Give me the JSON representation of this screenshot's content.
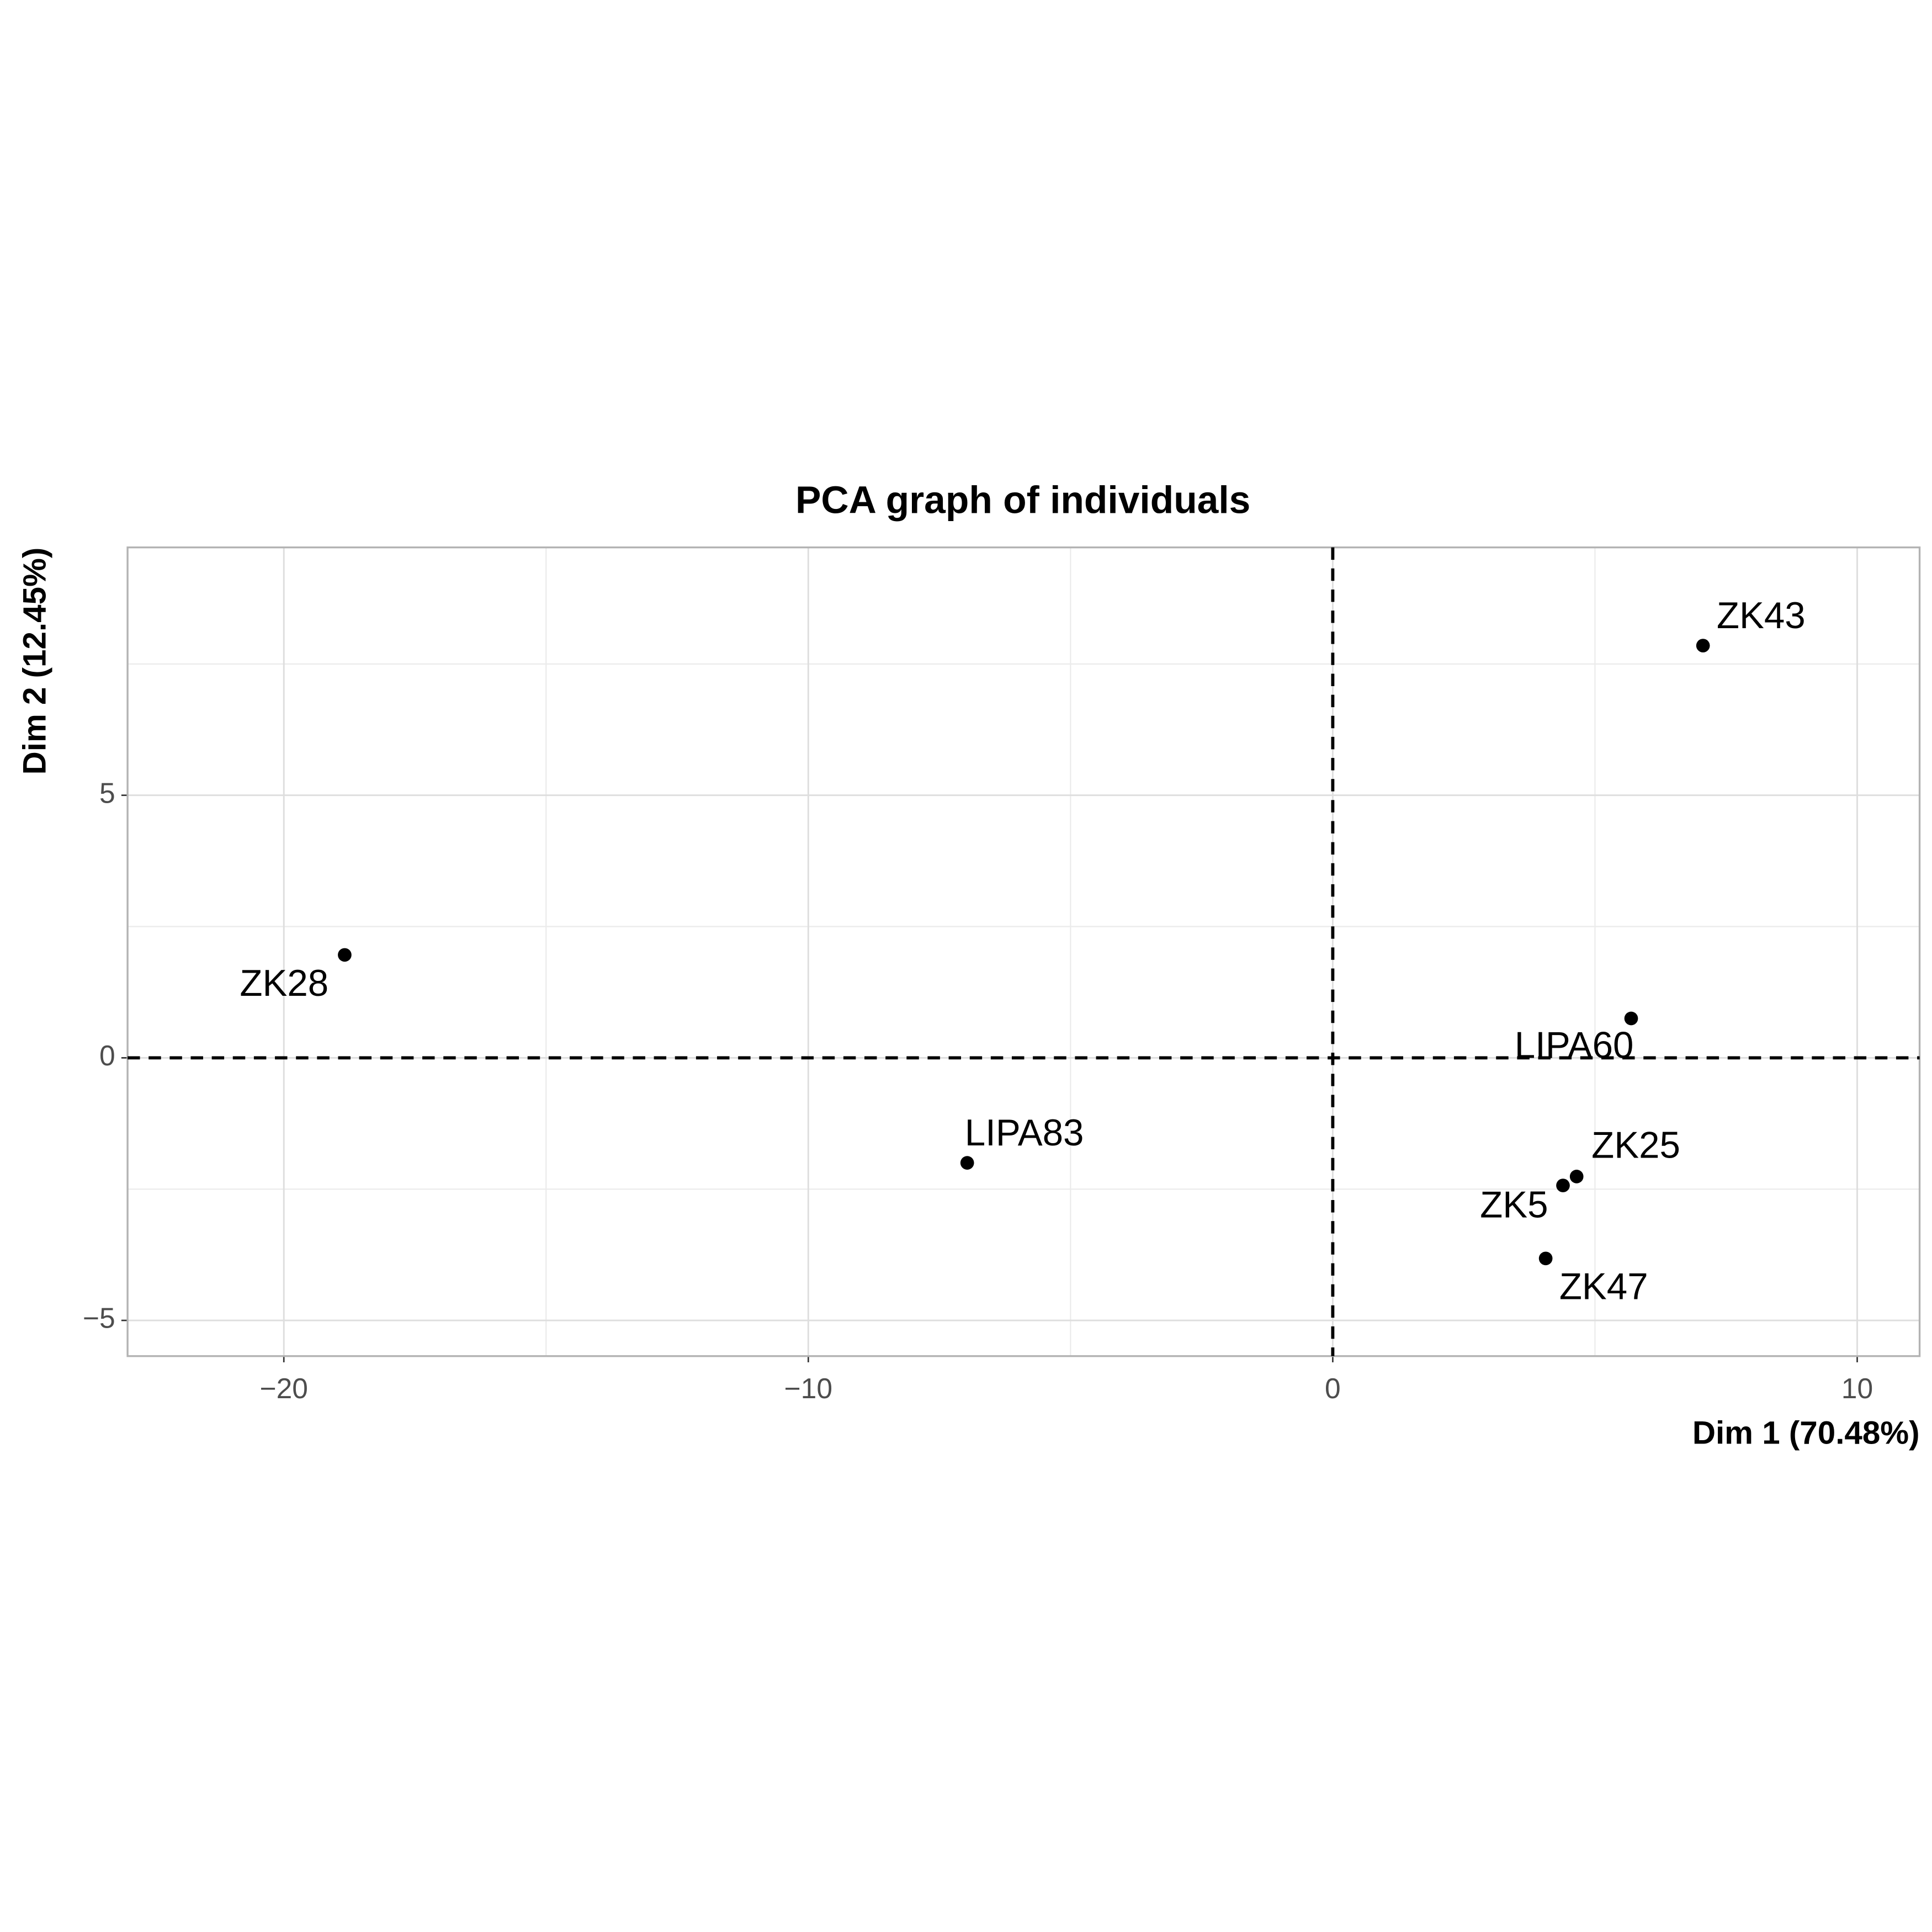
{
  "chart_data": {
    "type": "scatter",
    "title": "PCA graph of individuals",
    "xlabel": "Dim 1 (70.48%)",
    "ylabel": "Dim 2 (12.45%)",
    "labels": [
      "ZK43",
      "ZK28",
      "LIPA60",
      "LIPA83",
      "ZK25",
      "ZK5",
      "ZK47"
    ],
    "x": [
      7.06,
      -18.84,
      5.69,
      -6.97,
      4.65,
      4.39,
      4.06
    ],
    "values": [
      7.85,
      1.96,
      0.75,
      -2.0,
      -2.26,
      -2.43,
      -3.82
    ],
    "color": "#000000",
    "xlim": [
      -22.98,
      11.19
    ],
    "ylim": [
      -5.68,
      9.72
    ],
    "xticks": [
      {
        "value": -20,
        "label": "−20"
      },
      {
        "value": -10,
        "label": "−10"
      },
      0,
      10
    ],
    "yticks": [
      {
        "value": -5,
        "label": "−5"
      },
      0,
      5
    ],
    "hline": 0,
    "vline": 0,
    "grid": true
  }
}
